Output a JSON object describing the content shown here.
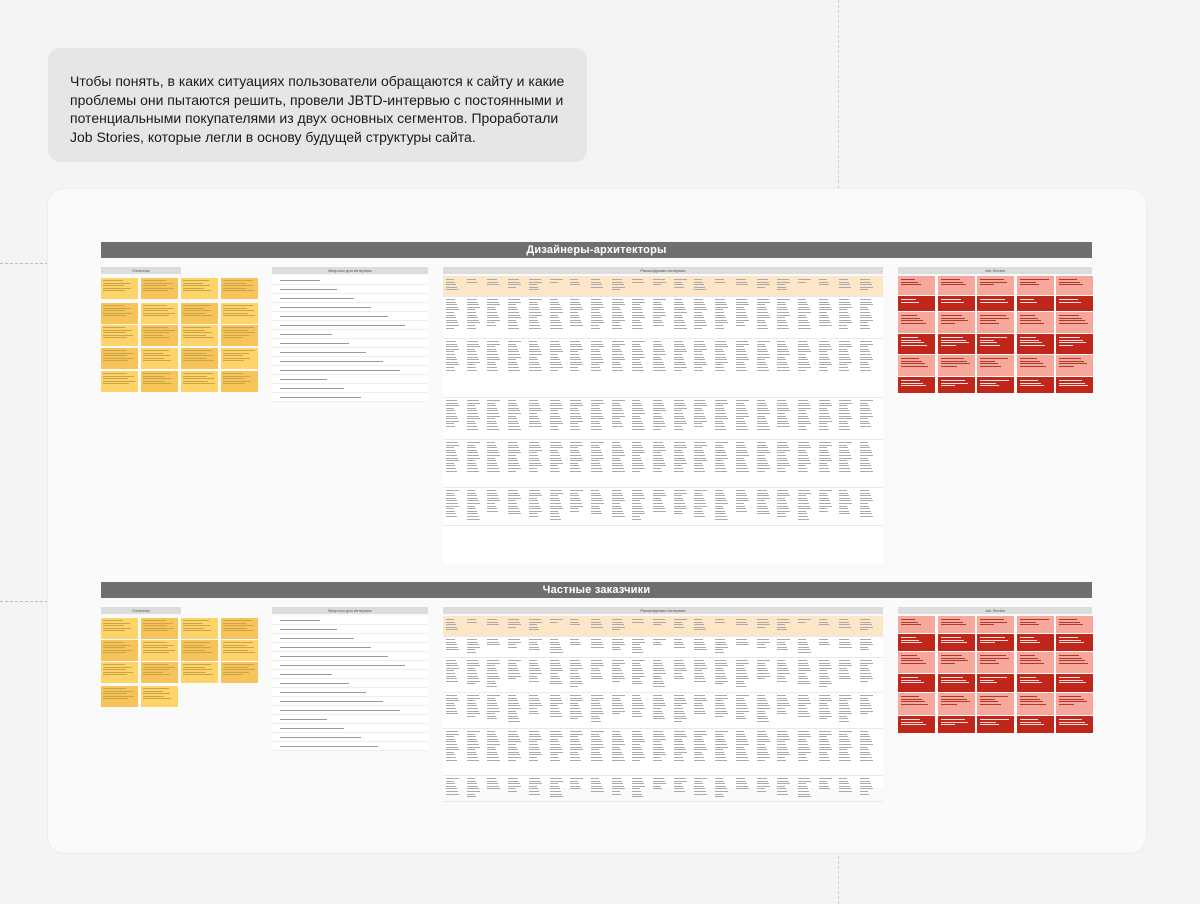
{
  "intro_text": "Чтобы понять, в каких ситуациях пользователи обращаются к сайту и какие проблемы они пытаются решить, провели JBTD-интервью с постоянными и потенциальными покупателями из двух основных сегментов. Проработали Job Stories, которые легли в основу будущей структуры сайта.",
  "sections": [
    {
      "title": "Дизайнеры-архитекторы",
      "headers": [
        "Гипотезы",
        "Вопросы для интервью",
        "Расшифровка интервью",
        "Job Stories"
      ]
    },
    {
      "title": "Частные заказчики",
      "headers": [
        "Гипотезы",
        "Вопросы для интервью",
        "Расшифровка интервью",
        "Job Stories"
      ]
    }
  ],
  "colors": {
    "sticky": "#fdd36a",
    "interview_header": "#fde5c8",
    "story_light": "#f6a89c",
    "story_dark": "#c0271a",
    "banner": "#6f6f6f"
  }
}
